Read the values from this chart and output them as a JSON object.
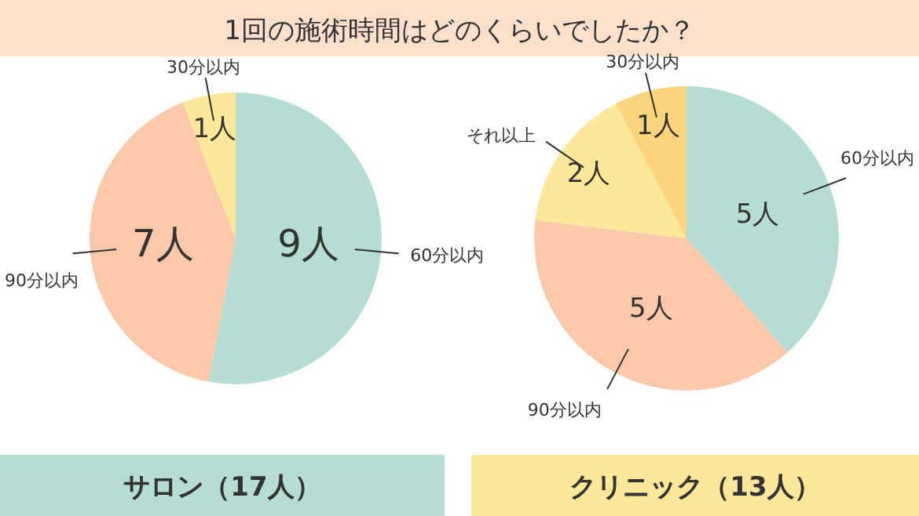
{
  "chart_data": [
    {
      "type": "pie",
      "title": "サロン（17人）",
      "annotations": [
        "1回の施術時間はどのくらいでしたか？"
      ],
      "categories": [
        "60分以内",
        "90分以内",
        "30分以内"
      ],
      "values": [
        9,
        7,
        1
      ],
      "value_labels": [
        "9人",
        "7人",
        "1人"
      ],
      "colors": [
        "#b5ddd3",
        "#fbc9a9",
        "#fde89a"
      ]
    },
    {
      "type": "pie",
      "title": "クリニック（13人）",
      "categories": [
        "60分以内",
        "90分以内",
        "それ以上",
        "30分以内"
      ],
      "values": [
        5,
        5,
        2,
        1
      ],
      "value_labels": [
        "5人",
        "5人",
        "2人",
        "1人"
      ],
      "colors": [
        "#b5ddd3",
        "#fbc9a9",
        "#fde89a",
        "#fbd47c"
      ]
    }
  ]
}
